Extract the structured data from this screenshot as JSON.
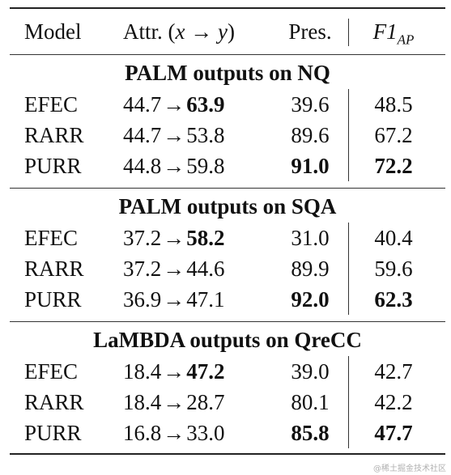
{
  "header": {
    "model": "Model",
    "attr_prefix": "Attr. (",
    "attr_x": "x",
    "attr_arrow": "→",
    "attr_y": "y",
    "attr_suffix": ")",
    "pres": "Pres.",
    "f1_main": "F1",
    "f1_sub": "AP"
  },
  "sections": [
    {
      "title": "PALM outputs on NQ",
      "rows": [
        {
          "model": "EFEC",
          "attr_from": "44.7",
          "attr_to": "63.9",
          "pres": "39.6",
          "f1": "48.5"
        },
        {
          "model": "RARR",
          "attr_from": "44.7",
          "attr_to": "53.8",
          "pres": "89.6",
          "f1": "67.2"
        },
        {
          "model": "PURR",
          "attr_from": "44.8",
          "attr_to": "59.8",
          "pres": "91.0",
          "f1": "72.2"
        }
      ]
    },
    {
      "title": "PALM outputs on SQA",
      "rows": [
        {
          "model": "EFEC",
          "attr_from": "37.2",
          "attr_to": "58.2",
          "pres": "31.0",
          "f1": "40.4"
        },
        {
          "model": "RARR",
          "attr_from": "37.2",
          "attr_to": "44.6",
          "pres": "89.9",
          "f1": "59.6"
        },
        {
          "model": "PURR",
          "attr_from": "36.9",
          "attr_to": "47.1",
          "pres": "92.0",
          "f1": "62.3"
        }
      ]
    },
    {
      "title": "LaMBDA outputs on QreCC",
      "rows": [
        {
          "model": "EFEC",
          "attr_from": "18.4",
          "attr_to": "47.2",
          "pres": "39.0",
          "f1": "42.7"
        },
        {
          "model": "RARR",
          "attr_from": "18.4",
          "attr_to": "28.7",
          "pres": "80.1",
          "f1": "42.2"
        },
        {
          "model": "PURR",
          "attr_from": "16.8",
          "attr_to": "33.0",
          "pres": "85.8",
          "f1": "47.7"
        }
      ]
    }
  ],
  "arrow_symbol": "→",
  "watermark": "@稀土掘金技术社区"
}
